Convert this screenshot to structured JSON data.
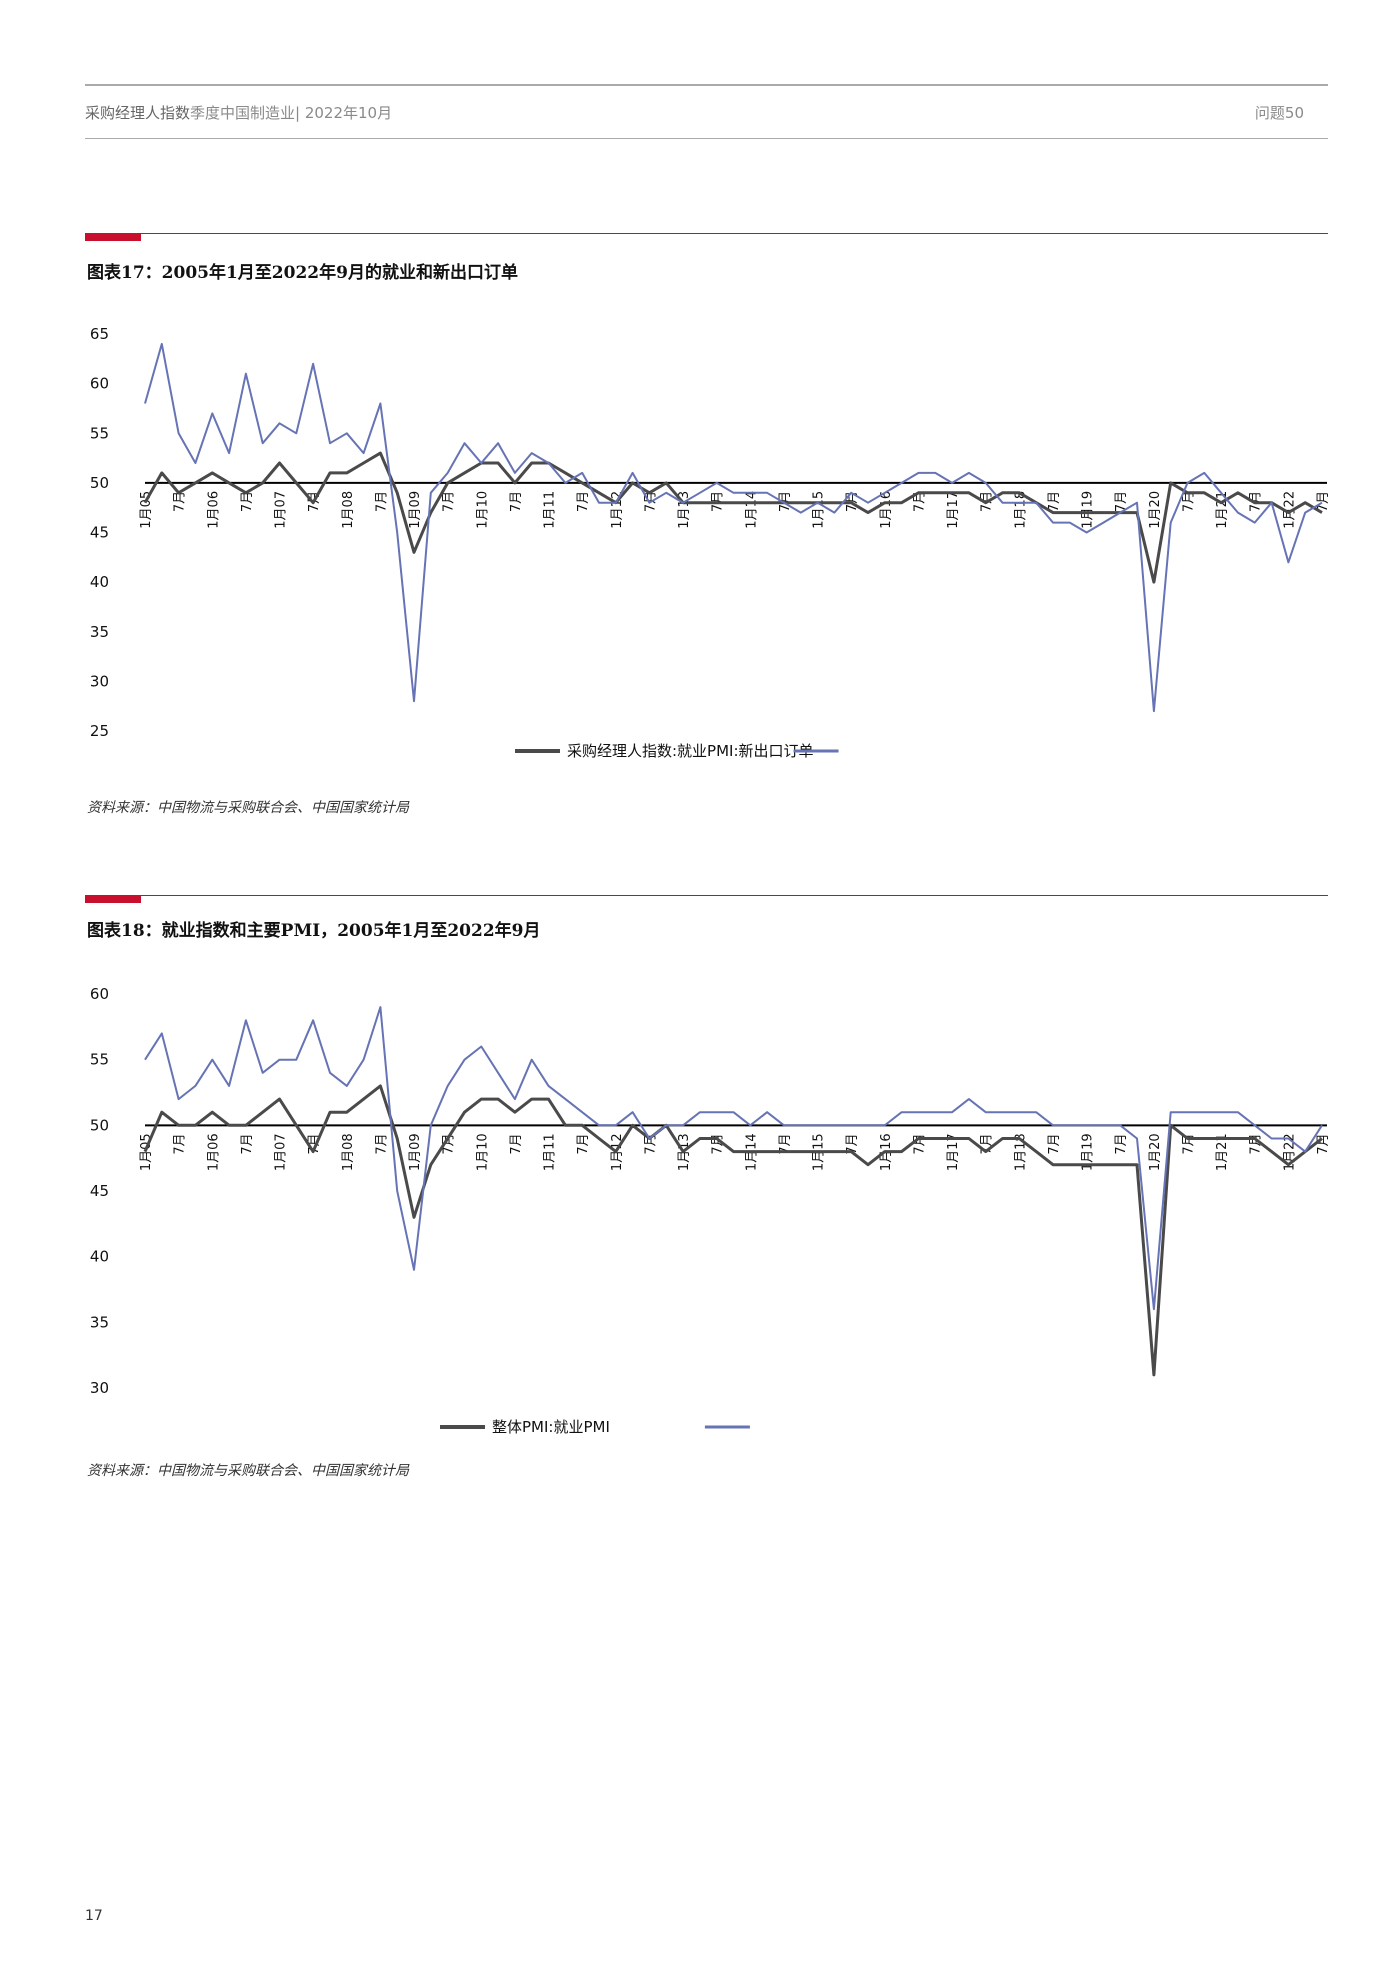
{
  "header": {
    "title_strong": "采购经理人指数",
    "title_rest": "季度中国制造业| 2022年10月",
    "issue": "问题50"
  },
  "page_number": "17",
  "chart_data": [
    {
      "type": "line",
      "title": "图表17：2005年1月至2022年9月的就业和新出口订单",
      "source": "资料来源：中国物流与采购联合会、中国国家统计局",
      "categories": [
        "1月05",
        null,
        "7月",
        null,
        "1月06",
        null,
        "7月",
        null,
        "1月07",
        null,
        "7月",
        null,
        "1月08",
        null,
        "7月",
        null,
        "1月09",
        null,
        "7月",
        null,
        "1月10",
        null,
        "7月",
        null,
        "1月11",
        null,
        "7月",
        null,
        "1月12",
        null,
        "7月",
        null,
        "1月13",
        null,
        "7月",
        null,
        "1月14",
        null,
        "7月",
        null,
        "1月15",
        null,
        "7月",
        null,
        "1月16",
        null,
        "7月",
        null,
        "1月17",
        null,
        "7月",
        null,
        "1月18",
        null,
        "7月",
        null,
        "1月19",
        null,
        "7月",
        null,
        "1月20",
        null,
        "7月",
        null,
        "1月21",
        null,
        "7月",
        null,
        "1月22",
        null,
        "7月"
      ],
      "series": [
        {
          "name": "采购经理人指数:就业PMI:新出口订单",
          "color": "#4a4a4a",
          "width": 3,
          "values": [
            48,
            51,
            49,
            50,
            51,
            50,
            49,
            50,
            52,
            50,
            48,
            51,
            51,
            52,
            53,
            49,
            43,
            47,
            50,
            51,
            52,
            52,
            50,
            52,
            52,
            51,
            50,
            49,
            48,
            50,
            49,
            50,
            48,
            48,
            48,
            48,
            48,
            48,
            48,
            48,
            48,
            48,
            48,
            47,
            48,
            48,
            49,
            49,
            49,
            49,
            48,
            49,
            49,
            48,
            47,
            47,
            47,
            47,
            47,
            47,
            40,
            50,
            49,
            49,
            48,
            49,
            48,
            48,
            47,
            48,
            47
          ]
        },
        {
          "color": "#6673b4",
          "width": 2,
          "values": [
            58,
            64,
            55,
            52,
            57,
            53,
            61,
            54,
            56,
            55,
            62,
            54,
            55,
            53,
            58,
            45,
            28,
            49,
            51,
            54,
            52,
            54,
            51,
            53,
            52,
            50,
            51,
            48,
            48,
            51,
            48,
            49,
            48,
            49,
            50,
            49,
            49,
            49,
            48,
            47,
            48,
            47,
            49,
            48,
            49,
            50,
            51,
            51,
            50,
            51,
            50,
            48,
            48,
            48,
            46,
            46,
            45,
            46,
            47,
            48,
            27,
            46,
            50,
            51,
            49,
            47,
            46,
            48,
            42,
            47,
            48
          ]
        }
      ],
      "ylim": [
        25,
        65
      ],
      "yticks": [
        25,
        30,
        35,
        40,
        45,
        50,
        55,
        60,
        65
      ],
      "reference_line": 50
    },
    {
      "type": "line",
      "title": "图表18：就业指数和主要PMI，2005年1月至2022年9月",
      "source": "资料来源：中国物流与采购联合会、中国国家统计局",
      "categories": [
        "1月05",
        null,
        "7月",
        null,
        "1月06",
        null,
        "7月",
        null,
        "1月07",
        null,
        "7月",
        null,
        "1月08",
        null,
        "7月",
        null,
        "1月09",
        null,
        "7月",
        null,
        "1月10",
        null,
        "7月",
        null,
        "1月11",
        null,
        "7月",
        null,
        "1月12",
        null,
        "7月",
        null,
        "1月13",
        null,
        "7月",
        null,
        "1月14",
        null,
        "7月",
        null,
        "1月15",
        null,
        "7月",
        null,
        "1月16",
        null,
        "7月",
        null,
        "1月17",
        null,
        "7月",
        null,
        "1月18",
        null,
        "7月",
        null,
        "1月19",
        null,
        "7月",
        null,
        "1月20",
        null,
        "7月",
        null,
        "1月21",
        null,
        "7月",
        null,
        "1月22",
        null,
        "7月"
      ],
      "series": [
        {
          "name": "整体PMI:就业PMI",
          "color": "#4a4a4a",
          "width": 3,
          "values": [
            48,
            51,
            50,
            50,
            51,
            50,
            50,
            51,
            52,
            50,
            48,
            51,
            51,
            52,
            53,
            49,
            43,
            47,
            49,
            51,
            52,
            52,
            51,
            52,
            52,
            50,
            50,
            49,
            48,
            50,
            49,
            50,
            48,
            49,
            49,
            48,
            48,
            48,
            48,
            48,
            48,
            48,
            48,
            47,
            48,
            48,
            49,
            49,
            49,
            49,
            48,
            49,
            49,
            48,
            47,
            47,
            47,
            47,
            47,
            47,
            31,
            50,
            49,
            49,
            49,
            49,
            49,
            48,
            47,
            48,
            49
          ]
        },
        {
          "color": "#6673b4",
          "width": 2,
          "values": [
            55,
            57,
            52,
            53,
            55,
            53,
            58,
            54,
            55,
            55,
            58,
            54,
            53,
            55,
            59,
            45,
            39,
            50,
            53,
            55,
            56,
            54,
            52,
            55,
            53,
            52,
            51,
            50,
            50,
            51,
            49,
            50,
            50,
            51,
            51,
            51,
            50,
            51,
            50,
            50,
            50,
            50,
            50,
            50,
            50,
            51,
            51,
            51,
            51,
            52,
            51,
            51,
            51,
            51,
            50,
            50,
            50,
            50,
            50,
            49,
            36,
            51,
            51,
            51,
            51,
            51,
            50,
            49,
            49,
            48,
            50
          ]
        }
      ],
      "ylim": [
        30,
        60
      ],
      "yticks": [
        30,
        35,
        40,
        45,
        50,
        55,
        60
      ],
      "reference_line": 50
    }
  ]
}
